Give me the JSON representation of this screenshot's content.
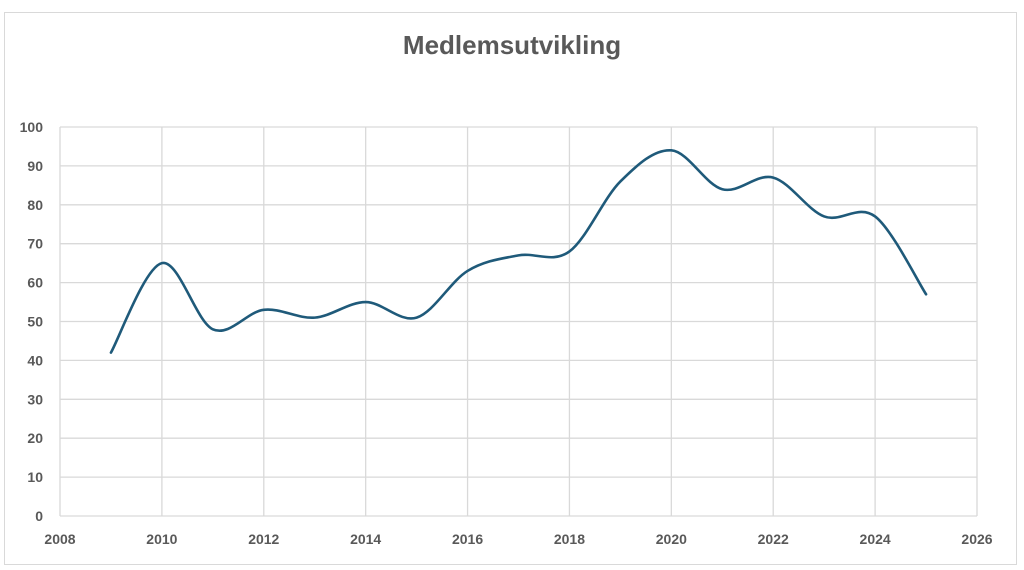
{
  "chart_data": {
    "type": "line",
    "title": "Medlemsutvikling",
    "xlabel": "",
    "ylabel": "",
    "xlim": [
      2008,
      2026
    ],
    "ylim": [
      0,
      100
    ],
    "x_ticks": [
      "2008",
      "2010",
      "2012",
      "2014",
      "2016",
      "2018",
      "2020",
      "2022",
      "2024",
      "2026"
    ],
    "y_ticks": [
      "0",
      "10",
      "20",
      "30",
      "40",
      "50",
      "60",
      "70",
      "80",
      "90",
      "100"
    ],
    "grid": true,
    "smooth": true,
    "series": [
      {
        "color": "#1f5a7a",
        "points": [
          {
            "x": 2009,
            "y": 42
          },
          {
            "x": 2010,
            "y": 65
          },
          {
            "x": 2011,
            "y": 48
          },
          {
            "x": 2012,
            "y": 53
          },
          {
            "x": 2013,
            "y": 51
          },
          {
            "x": 2014,
            "y": 55
          },
          {
            "x": 2015,
            "y": 51
          },
          {
            "x": 2016,
            "y": 63
          },
          {
            "x": 2017,
            "y": 67
          },
          {
            "x": 2018,
            "y": 68
          },
          {
            "x": 2019,
            "y": 86
          },
          {
            "x": 2020,
            "y": 94
          },
          {
            "x": 2021,
            "y": 84
          },
          {
            "x": 2022,
            "y": 87
          },
          {
            "x": 2023,
            "y": 77
          },
          {
            "x": 2024,
            "y": 77
          },
          {
            "x": 2025,
            "y": 57
          }
        ]
      }
    ]
  }
}
